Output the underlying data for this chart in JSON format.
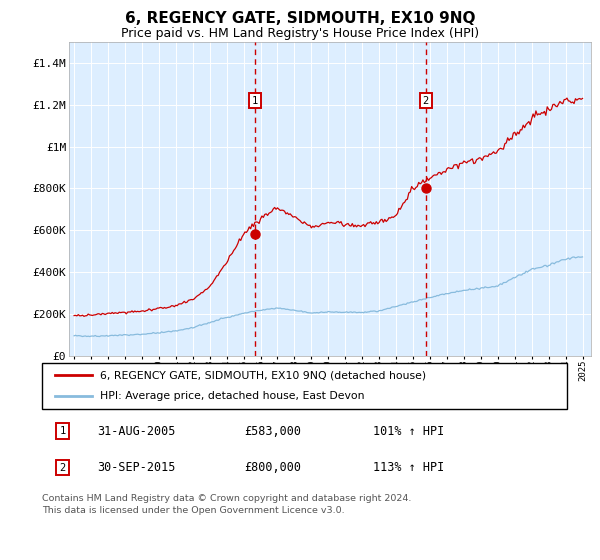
{
  "title": "6, REGENCY GATE, SIDMOUTH, EX10 9NQ",
  "subtitle": "Price paid vs. HM Land Registry's House Price Index (HPI)",
  "ylim": [
    0,
    1500000
  ],
  "yticks": [
    0,
    200000,
    400000,
    600000,
    800000,
    1000000,
    1200000,
    1400000
  ],
  "ytick_labels": [
    "£0",
    "£200K",
    "£400K",
    "£600K",
    "£800K",
    "£1M",
    "£1.2M",
    "£1.4M"
  ],
  "xmin": 1994.7,
  "xmax": 2025.5,
  "line1_color": "#cc0000",
  "line2_color": "#88bbdd",
  "vline_color": "#cc0000",
  "marker1_x": 2005.667,
  "marker1_y": 583000,
  "marker2_x": 2015.75,
  "marker2_y": 800000,
  "legend_line1": "6, REGENCY GATE, SIDMOUTH, EX10 9NQ (detached house)",
  "legend_line2": "HPI: Average price, detached house, East Devon",
  "table_row1": [
    "1",
    "31-AUG-2005",
    "£583,000",
    "101% ↑ HPI"
  ],
  "table_row2": [
    "2",
    "30-SEP-2015",
    "£800,000",
    "113% ↑ HPI"
  ],
  "footnote1": "Contains HM Land Registry data © Crown copyright and database right 2024.",
  "footnote2": "This data is licensed under the Open Government Licence v3.0.",
  "plot_bg_color": "#ddeeff",
  "grid_color": "#ccddee",
  "seed": 42,
  "year_nodes": [
    1995,
    1996,
    1997,
    1998,
    1999,
    2000,
    2001,
    2002,
    2003,
    2004,
    2005,
    2006,
    2007,
    2008,
    2009,
    2010,
    2011,
    2012,
    2013,
    2014,
    2015,
    2016,
    2017,
    2018,
    2019,
    2020,
    2021,
    2022,
    2023,
    2024,
    2025
  ],
  "red_nodes": [
    190000,
    195000,
    202000,
    207000,
    213000,
    225000,
    240000,
    268000,
    330000,
    445000,
    583000,
    655000,
    705000,
    660000,
    615000,
    635000,
    628000,
    622000,
    638000,
    672000,
    800000,
    852000,
    892000,
    922000,
    942000,
    975000,
    1055000,
    1135000,
    1182000,
    1222000,
    1230000
  ],
  "blue_nodes": [
    95000,
    93000,
    95000,
    98000,
    102000,
    109000,
    118000,
    133000,
    158000,
    182000,
    202000,
    218000,
    228000,
    216000,
    204000,
    209000,
    207000,
    206000,
    214000,
    236000,
    257000,
    278000,
    298000,
    312000,
    322000,
    333000,
    373000,
    413000,
    432000,
    462000,
    472000
  ]
}
